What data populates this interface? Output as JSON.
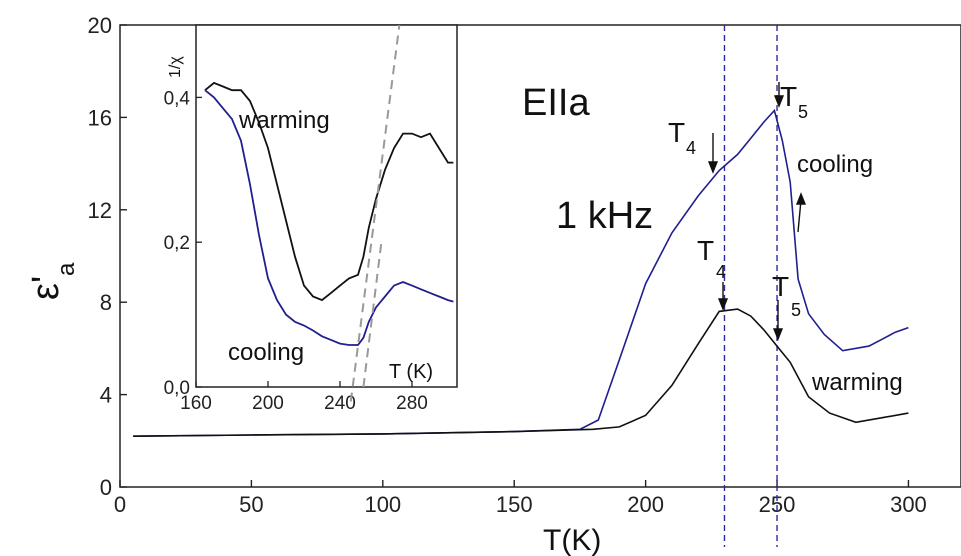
{
  "chart_data": [
    {
      "type": "line",
      "title": "",
      "xlabel": "T(K)",
      "ylabel": "ε'",
      "ylabel_sub": "a",
      "xlim": [
        0,
        320
      ],
      "ylim": [
        0,
        20
      ],
      "xticks": [
        0,
        50,
        100,
        150,
        200,
        250,
        300
      ],
      "yticks": [
        0,
        4,
        8,
        12,
        16,
        20
      ],
      "grid": false,
      "annotations": {
        "sample": "EIIa",
        "frequency": "1 kHz",
        "cooling_label": "cooling",
        "warming_label": "warming",
        "T4_cool": {
          "main": "T",
          "sub": "4",
          "x": 228,
          "y": 13.7
        },
        "T5_cool": {
          "main": "T",
          "sub": "5",
          "x": 248,
          "y": 16.5
        },
        "T4_warm": {
          "main": "T",
          "sub": "4",
          "x": 230,
          "y": 7.7
        },
        "T5_warm": {
          "main": "T",
          "sub": "5",
          "x": 250,
          "y": 6.2
        }
      },
      "vlines": [
        230,
        250
      ],
      "series": [
        {
          "name": "cooling",
          "color": "#1f1f8f",
          "x": [
            5,
            50,
            100,
            150,
            175,
            182,
            190,
            200,
            210,
            220,
            228,
            235,
            240,
            245,
            249,
            252,
            255,
            258,
            262,
            268,
            275,
            285,
            290,
            295,
            300
          ],
          "y": [
            2.2,
            2.25,
            2.3,
            2.4,
            2.5,
            2.9,
            5.5,
            8.8,
            11.0,
            12.6,
            13.7,
            14.4,
            15.1,
            15.8,
            16.3,
            15.0,
            13.2,
            9.0,
            7.5,
            6.6,
            5.9,
            6.1,
            6.4,
            6.7,
            6.9
          ]
        },
        {
          "name": "warming",
          "color": "#111111",
          "x": [
            5,
            50,
            100,
            150,
            180,
            190,
            200,
            210,
            220,
            228,
            235,
            240,
            245,
            250,
            255,
            262,
            270,
            280,
            290,
            300
          ],
          "y": [
            2.2,
            2.25,
            2.3,
            2.4,
            2.5,
            2.6,
            3.1,
            4.4,
            6.2,
            7.6,
            7.7,
            7.4,
            6.8,
            6.1,
            5.4,
            3.9,
            3.2,
            2.8,
            3.0,
            3.2
          ]
        }
      ]
    },
    {
      "type": "line",
      "title": "",
      "xlabel": "T (K)",
      "ylabel": "1/χ",
      "xlim": [
        160,
        305
      ],
      "ylim": [
        0,
        0.5
      ],
      "xticks": [
        160,
        200,
        240,
        280
      ],
      "xtick_labels": [
        "160",
        "200",
        "240",
        "280"
      ],
      "yticks": [
        0,
        0.2,
        0.4
      ],
      "ytick_labels": [
        "0,0",
        "0,2",
        "0,4"
      ],
      "grid": false,
      "cooling_label": "cooling",
      "warming_label": "warming",
      "series": [
        {
          "name": "warming",
          "color": "#111111",
          "x": [
            165,
            170,
            175,
            180,
            185,
            190,
            195,
            200,
            205,
            210,
            215,
            220,
            225,
            230,
            235,
            240,
            245,
            250,
            253,
            256,
            260,
            265,
            270,
            275,
            280,
            285,
            290,
            295,
            300,
            303
          ],
          "y": [
            0.41,
            0.42,
            0.415,
            0.41,
            0.41,
            0.395,
            0.365,
            0.33,
            0.28,
            0.23,
            0.18,
            0.14,
            0.125,
            0.12,
            0.13,
            0.14,
            0.15,
            0.155,
            0.18,
            0.22,
            0.26,
            0.3,
            0.33,
            0.35,
            0.35,
            0.345,
            0.35,
            0.33,
            0.31,
            0.31
          ]
        },
        {
          "name": "cooling",
          "color": "#1f1f8f",
          "x": [
            165,
            170,
            175,
            180,
            185,
            190,
            195,
            200,
            205,
            210,
            215,
            220,
            225,
            230,
            235,
            240,
            245,
            250,
            253,
            256,
            260,
            265,
            270,
            275,
            280,
            285,
            290,
            295,
            300,
            303
          ],
          "y": [
            0.41,
            0.4,
            0.385,
            0.37,
            0.34,
            0.28,
            0.21,
            0.15,
            0.12,
            0.1,
            0.09,
            0.085,
            0.078,
            0.07,
            0.065,
            0.06,
            0.058,
            0.058,
            0.068,
            0.09,
            0.11,
            0.125,
            0.14,
            0.145,
            0.14,
            0.135,
            0.13,
            0.125,
            0.12,
            0.118
          ]
        },
        {
          "name": "fit-1",
          "color": "#999999",
          "dashed": true,
          "x": [
            246,
            273
          ],
          "y": [
            -0.02,
            0.5
          ]
        },
        {
          "name": "fit-2",
          "color": "#999999",
          "dashed": true,
          "x": [
            253,
            263
          ],
          "y": [
            0.0,
            0.2
          ]
        }
      ]
    }
  ]
}
